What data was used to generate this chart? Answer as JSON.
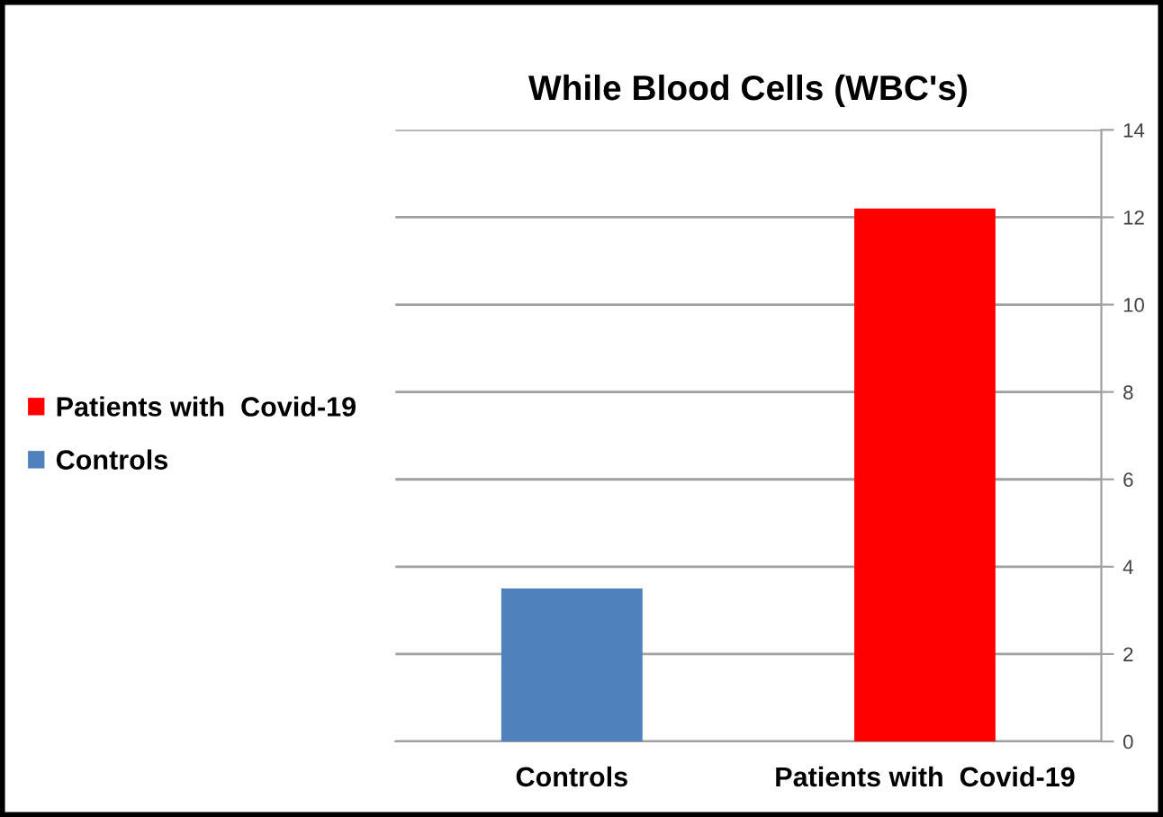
{
  "chart_data": {
    "type": "bar",
    "title": "While Blood Cells (WBC's)",
    "categories": [
      "Controls",
      "Patients with  Covid-19"
    ],
    "series": [
      {
        "name": "Patients with  Covid-19",
        "color": "#ff0000",
        "values": [
          null,
          12.2
        ]
      },
      {
        "name": "Controls",
        "color": "#4f81bd",
        "values": [
          3.5,
          null
        ]
      }
    ],
    "ylim": [
      0,
      14
    ],
    "yticks": [
      0,
      2,
      4,
      6,
      8,
      10,
      12,
      14
    ],
    "grid": "y",
    "legend": "left"
  }
}
